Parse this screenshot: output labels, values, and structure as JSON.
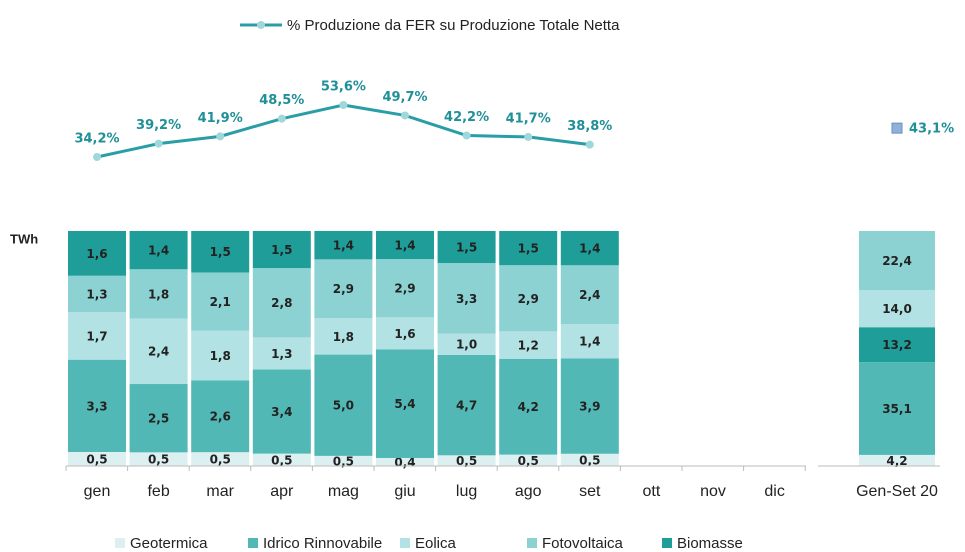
{
  "chart_data": [
    {
      "type": "line",
      "categories": [
        "gen",
        "feb",
        "mar",
        "apr",
        "mag",
        "giu",
        "lug",
        "ago",
        "set",
        "ott",
        "nov",
        "dic",
        "Gen-Set 20"
      ],
      "series": [
        {
          "name": "% Produzione da FER su Produzione Totale Netta",
          "color": "#2a9da6",
          "values": [
            34.2,
            39.2,
            41.9,
            48.5,
            53.6,
            49.7,
            42.2,
            41.7,
            38.8,
            null,
            null,
            null,
            43.1
          ],
          "value_labels": [
            "34,2%",
            "39,2%",
            "41,9%",
            "48,5%",
            "53,6%",
            "49,7%",
            "42,2%",
            "41,7%",
            "38,8%",
            null,
            null,
            null,
            "43,1%"
          ]
        }
      ]
    },
    {
      "type": "bar",
      "stacking": "percent",
      "unit": "TWh",
      "categories": [
        "gen",
        "feb",
        "mar",
        "apr",
        "mag",
        "giu",
        "lug",
        "ago",
        "set",
        "ott",
        "nov",
        "dic",
        "Gen-Set 20"
      ],
      "series": [
        {
          "name": "Geotermica",
          "color": "#dcf0f2",
          "values": [
            0.5,
            0.5,
            0.5,
            0.5,
            0.5,
            0.4,
            0.5,
            0.5,
            0.5,
            null,
            null,
            null,
            4.2
          ],
          "value_labels": [
            "0,5",
            "0,5",
            "0,5",
            "0,5",
            "0,5",
            "0,4",
            "0,5",
            "0,5",
            "0,5",
            null,
            null,
            null,
            "4,2"
          ]
        },
        {
          "name": "Idrico Rinnovabile",
          "color": "#52b8b5",
          "values": [
            3.3,
            2.5,
            2.6,
            3.4,
            5.0,
            5.4,
            4.7,
            4.2,
            3.9,
            null,
            null,
            null,
            35.1
          ],
          "value_labels": [
            "3,3",
            "2,5",
            "2,6",
            "3,4",
            "5,0",
            "5,4",
            "4,7",
            "4,2",
            "3,9",
            null,
            null,
            null,
            "35,1"
          ]
        },
        {
          "name": "Eolica",
          "color": "#b2e2e4",
          "values": [
            1.7,
            2.4,
            1.8,
            1.3,
            1.8,
            1.6,
            1.0,
            1.2,
            1.4,
            null,
            null,
            null,
            14.0
          ],
          "value_labels": [
            "1,7",
            "2,4",
            "1,8",
            "1,3",
            "1,8",
            "1,6",
            "1,0",
            "1,2",
            "1,4",
            null,
            null,
            null,
            "14,0"
          ]
        },
        {
          "name": "Fotovoltaica",
          "color": "#8dd2d3",
          "values": [
            1.3,
            1.8,
            2.1,
            2.8,
            2.9,
            2.9,
            3.3,
            2.9,
            2.4,
            null,
            null,
            null,
            22.4
          ],
          "value_labels": [
            "1,3",
            "1,8",
            "2,1",
            "2,8",
            "2,9",
            "2,9",
            "3,3",
            "2,9",
            "2,4",
            null,
            null,
            null,
            "22,4"
          ]
        },
        {
          "name": "Biomasse",
          "color": "#1f9e99",
          "values": [
            1.6,
            1.4,
            1.5,
            1.5,
            1.4,
            1.4,
            1.5,
            1.5,
            1.4,
            null,
            null,
            null,
            13.2
          ],
          "value_labels": [
            "1,6",
            "1,4",
            "1,5",
            "1,5",
            "1,4",
            "1,4",
            "1,5",
            "1,5",
            "1,4",
            null,
            null,
            null,
            "13,2"
          ]
        }
      ]
    }
  ]
}
